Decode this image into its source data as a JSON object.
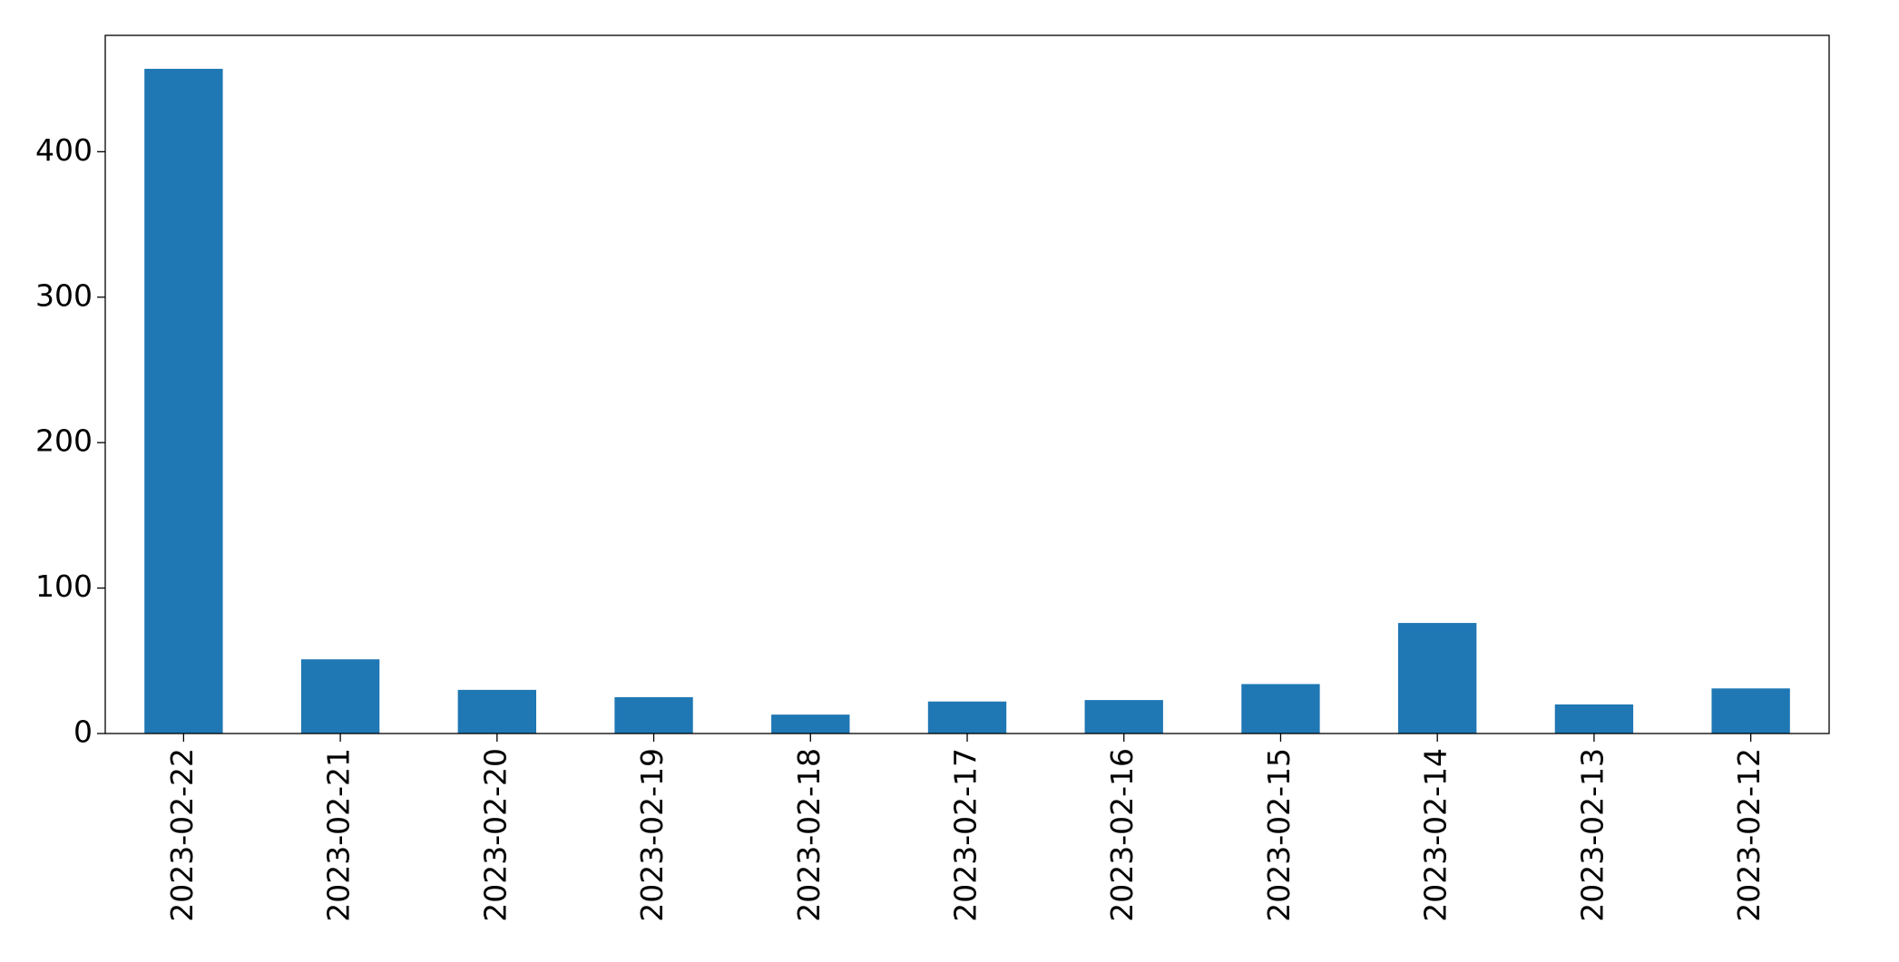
{
  "chart_data": {
    "type": "bar",
    "categories": [
      "2023-02-22",
      "2023-02-21",
      "2023-02-20",
      "2023-02-19",
      "2023-02-18",
      "2023-02-17",
      "2023-02-16",
      "2023-02-15",
      "2023-02-14",
      "2023-02-13",
      "2023-02-12"
    ],
    "values": [
      457,
      51,
      30,
      25,
      13,
      22,
      23,
      34,
      76,
      20,
      31
    ],
    "color": "#1f77b4",
    "ylim": [
      0,
      480
    ],
    "yticks": [
      0,
      100,
      200,
      300,
      400
    ],
    "grid": false
  }
}
